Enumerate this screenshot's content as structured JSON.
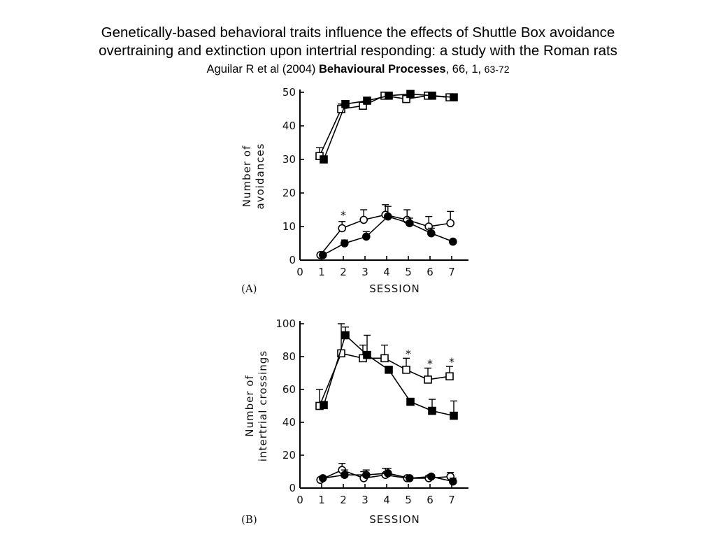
{
  "header": {
    "title_line1": "Genetically-based behavioral traits influence the effects of Shuttle Box avoidance",
    "title_line2": "overtraining and extinction upon intertrial responding: a study with the Roman rats",
    "citation_authors": "Aguilar R et al (2004) ",
    "citation_journal": "Behavioural Processes",
    "citation_volume": ", 66, 1, ",
    "citation_pages": "63-72"
  },
  "chart_data": [
    {
      "type": "line",
      "panel_label": "(A)",
      "xlabel": "SESSION",
      "ylabel_lines": [
        "Number of",
        "avoidances"
      ],
      "xlim": [
        0,
        7.5
      ],
      "ylim": [
        0,
        50
      ],
      "xticks": [
        0,
        1,
        2,
        3,
        4,
        5,
        6,
        7
      ],
      "yticks": [
        0,
        10,
        20,
        30,
        40,
        50
      ],
      "x": [
        1,
        2,
        3,
        4,
        5,
        6,
        7
      ],
      "series": [
        {
          "marker": "open-square",
          "values": [
            31,
            45,
            46,
            49,
            48,
            49,
            48.5
          ],
          "error": [
            2.5,
            1.5,
            1,
            0.5,
            1,
            0.5,
            0.5
          ]
        },
        {
          "marker": "filled-square",
          "values": [
            30,
            46.5,
            47.5,
            49,
            49.5,
            49,
            48.5
          ],
          "error": [
            0,
            0.5,
            0.5,
            0.5,
            0.5,
            0.5,
            0.5
          ]
        },
        {
          "marker": "open-circle",
          "values": [
            1.5,
            9.5,
            12,
            13.5,
            12,
            10,
            11
          ],
          "error": [
            0.5,
            2,
            3,
            3,
            3,
            3,
            3.5
          ]
        },
        {
          "marker": "filled-circle",
          "values": [
            1.5,
            5,
            7,
            13,
            11,
            8,
            5.5
          ],
          "error": [
            0,
            1,
            1.5,
            3,
            1.5,
            1.5,
            0.5
          ]
        }
      ],
      "significance": [
        {
          "x": 2,
          "y": 13.5,
          "label": "*"
        }
      ]
    },
    {
      "type": "line",
      "panel_label": "(B)",
      "xlabel": "SESSION",
      "ylabel_lines": [
        "Number of",
        "intertrial crossings"
      ],
      "xlim": [
        0,
        7.5
      ],
      "ylim": [
        0,
        100
      ],
      "xticks": [
        0,
        1,
        2,
        3,
        4,
        5,
        6,
        7
      ],
      "yticks": [
        0,
        20,
        40,
        60,
        80,
        100
      ],
      "x": [
        1,
        2,
        3,
        4,
        5,
        6,
        7
      ],
      "series": [
        {
          "marker": "open-square",
          "values": [
            50,
            82,
            79,
            79,
            72,
            66,
            68
          ],
          "error": [
            10,
            18,
            8,
            8,
            7,
            7,
            6
          ]
        },
        {
          "marker": "filled-square",
          "values": [
            50.5,
            93,
            81,
            72,
            52.5,
            47,
            44
          ],
          "error": [
            2,
            5,
            12,
            2,
            2,
            7,
            9
          ]
        },
        {
          "marker": "open-circle",
          "values": [
            5,
            11,
            6,
            8,
            6,
            6,
            7
          ],
          "error": [
            0.5,
            4,
            4,
            4,
            0.5,
            1.5,
            2.5
          ]
        },
        {
          "marker": "filled-circle",
          "values": [
            6,
            8,
            8,
            9,
            6,
            7,
            4
          ],
          "error": [
            0.5,
            3,
            3,
            3,
            1,
            1,
            2
          ]
        }
      ],
      "significance": [
        {
          "x": 5,
          "y": 82,
          "label": "*"
        },
        {
          "x": 6,
          "y": 76,
          "label": "*"
        },
        {
          "x": 7,
          "y": 77,
          "label": "*"
        }
      ]
    }
  ]
}
